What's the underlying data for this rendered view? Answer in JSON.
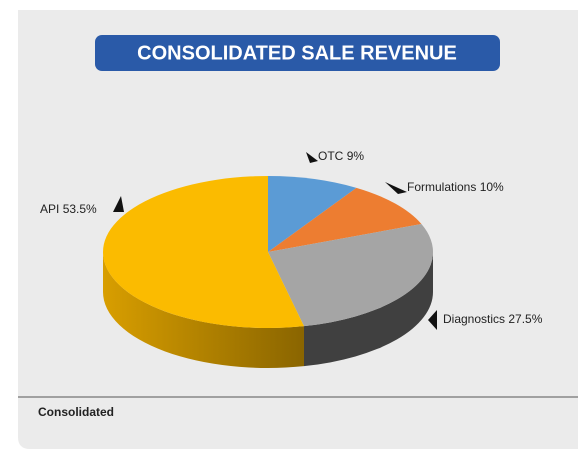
{
  "chart_data": {
    "type": "pie",
    "title": "CONSOLIDATED SALE REVENUE",
    "categories": [
      "OTC",
      "Formulations",
      "Diagnostics",
      "API"
    ],
    "values": [
      9,
      10,
      27.5,
      53.5
    ],
    "value_labels": [
      "9%",
      "10%",
      "27.5%",
      "53.5%"
    ],
    "colors": [
      "#5b9bd5",
      "#ed7d31",
      "#a5a5a5",
      "#fbbb00"
    ],
    "footer": "Consolidated"
  }
}
